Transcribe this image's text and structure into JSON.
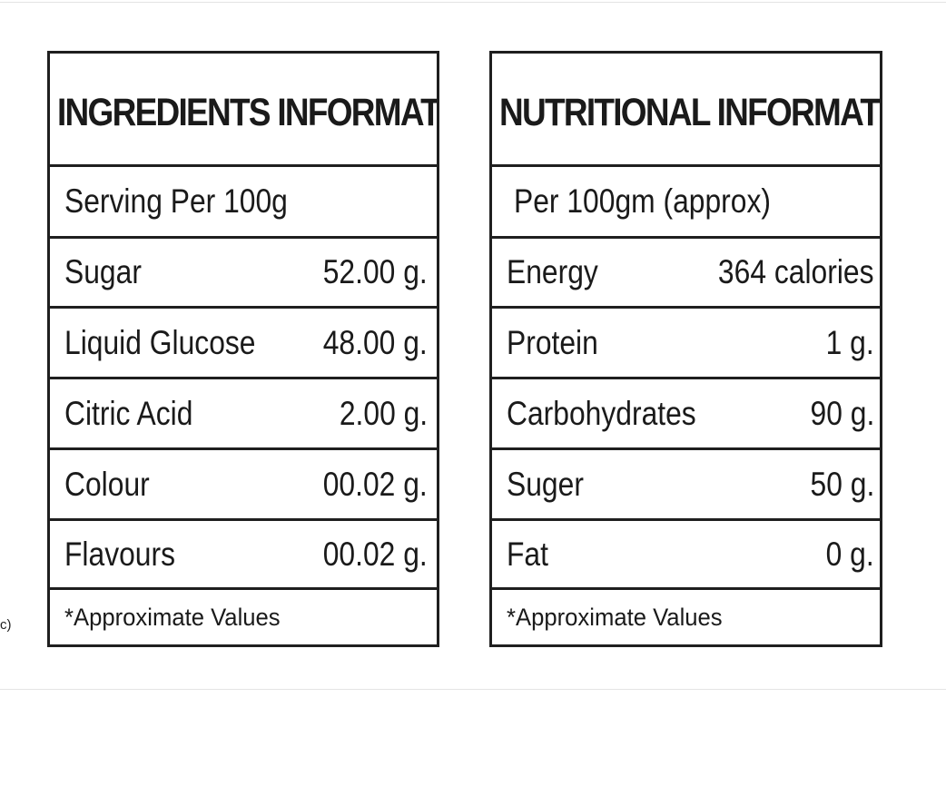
{
  "edge_fragment": "c)",
  "ingredients_panel": {
    "title": "INGREDIENTS INFORMATION*",
    "subtitle": "Serving Per 100g",
    "rows": [
      {
        "label": "Sugar",
        "value": "52.00 g."
      },
      {
        "label": "Liquid Glucose",
        "value": "48.00 g."
      },
      {
        "label": "Citric Acid",
        "value": "2.00 g."
      },
      {
        "label": "Colour",
        "value": "00.02 g."
      },
      {
        "label": "Flavours",
        "value": "00.02 g."
      }
    ],
    "footnote": "*Approximate Values"
  },
  "nutrition_panel": {
    "title": "NUTRITIONAL INFORMATION",
    "subtitle": "Per 100gm (approx)",
    "rows": [
      {
        "label": "Energy",
        "value": "364 calories"
      },
      {
        "label": "Protein",
        "value": "1 g."
      },
      {
        "label": "Carbohydrates",
        "value": "90 g."
      },
      {
        "label": "Suger",
        "value": "50 g."
      },
      {
        "label": "Fat",
        "value": "0 g."
      }
    ],
    "footnote": "*Approximate Values"
  }
}
